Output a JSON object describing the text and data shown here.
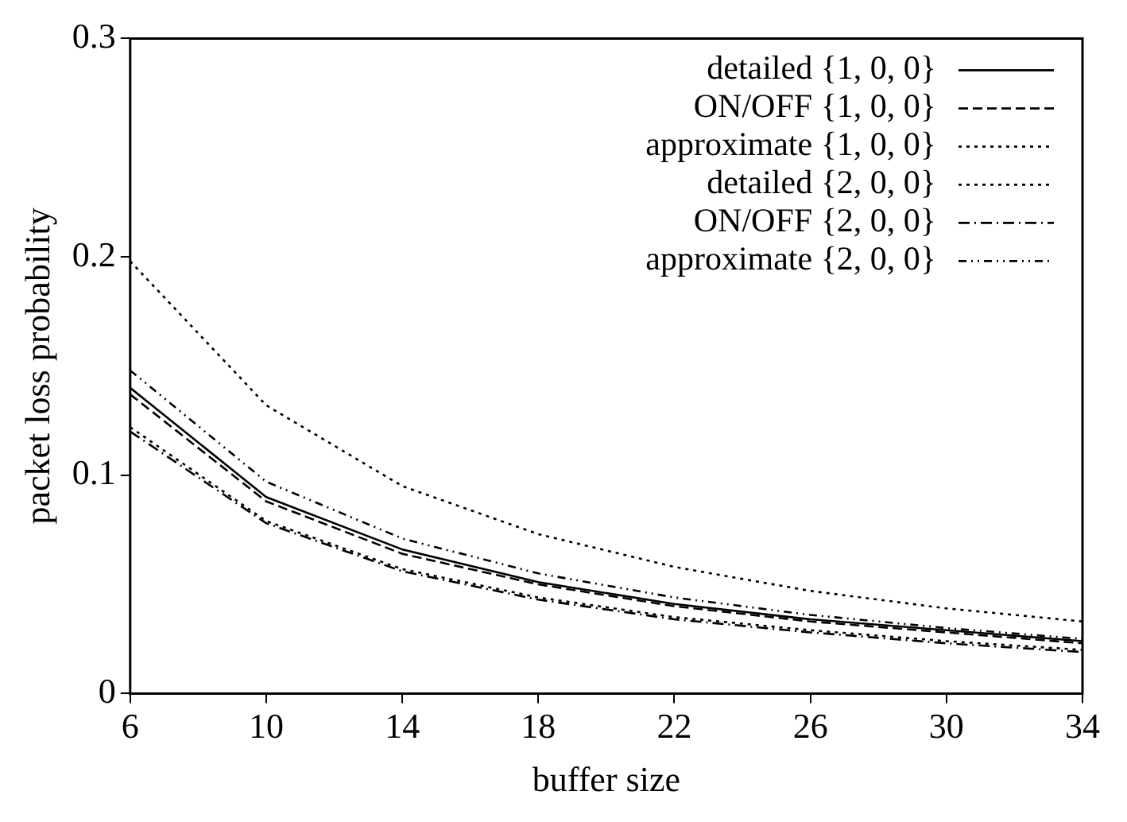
{
  "chart_data": {
    "type": "line",
    "xlabel": "buffer size",
    "ylabel": "packet loss probability",
    "x": [
      6,
      10,
      14,
      18,
      22,
      26,
      30,
      34
    ],
    "xlim": [
      6,
      34
    ],
    "xticks": [
      6,
      10,
      14,
      18,
      22,
      26,
      30,
      34
    ],
    "ylim": [
      0,
      0.3
    ],
    "yticks": [
      0,
      0.1,
      0.2,
      0.3
    ],
    "grid": false,
    "legend": "top right",
    "marker": "none",
    "series": [
      {
        "name": "detailed {1, 0, 0}",
        "color": "#000000",
        "line_style": "solid",
        "values": [
          0.14,
          0.09,
          0.066,
          0.051,
          0.041,
          0.034,
          0.029,
          0.024
        ]
      },
      {
        "name": "ON/OFF {1, 0, 0}",
        "color": "#000000",
        "line_style": "dashed",
        "values": [
          0.137,
          0.088,
          0.064,
          0.05,
          0.04,
          0.033,
          0.028,
          0.023
        ]
      },
      {
        "name": "approximate {1, 0, 0}",
        "color": "#000000",
        "line_style": "dotted",
        "values": [
          0.198,
          0.132,
          0.095,
          0.073,
          0.058,
          0.047,
          0.039,
          0.033
        ]
      },
      {
        "name": "detailed {2, 0, 0}",
        "color": "#000000",
        "line_style": "dotted",
        "values": [
          0.122,
          0.079,
          0.057,
          0.044,
          0.035,
          0.029,
          0.024,
          0.02
        ]
      },
      {
        "name": "ON/OFF {2, 0, 0}",
        "color": "#000000",
        "line_style": "dashdot",
        "values": [
          0.12,
          0.078,
          0.056,
          0.043,
          0.034,
          0.028,
          0.023,
          0.019
        ]
      },
      {
        "name": "approximate {2, 0, 0}",
        "color": "#000000",
        "line_style": "dashdotdot",
        "values": [
          0.148,
          0.097,
          0.071,
          0.055,
          0.044,
          0.036,
          0.03,
          0.025
        ]
      }
    ]
  }
}
